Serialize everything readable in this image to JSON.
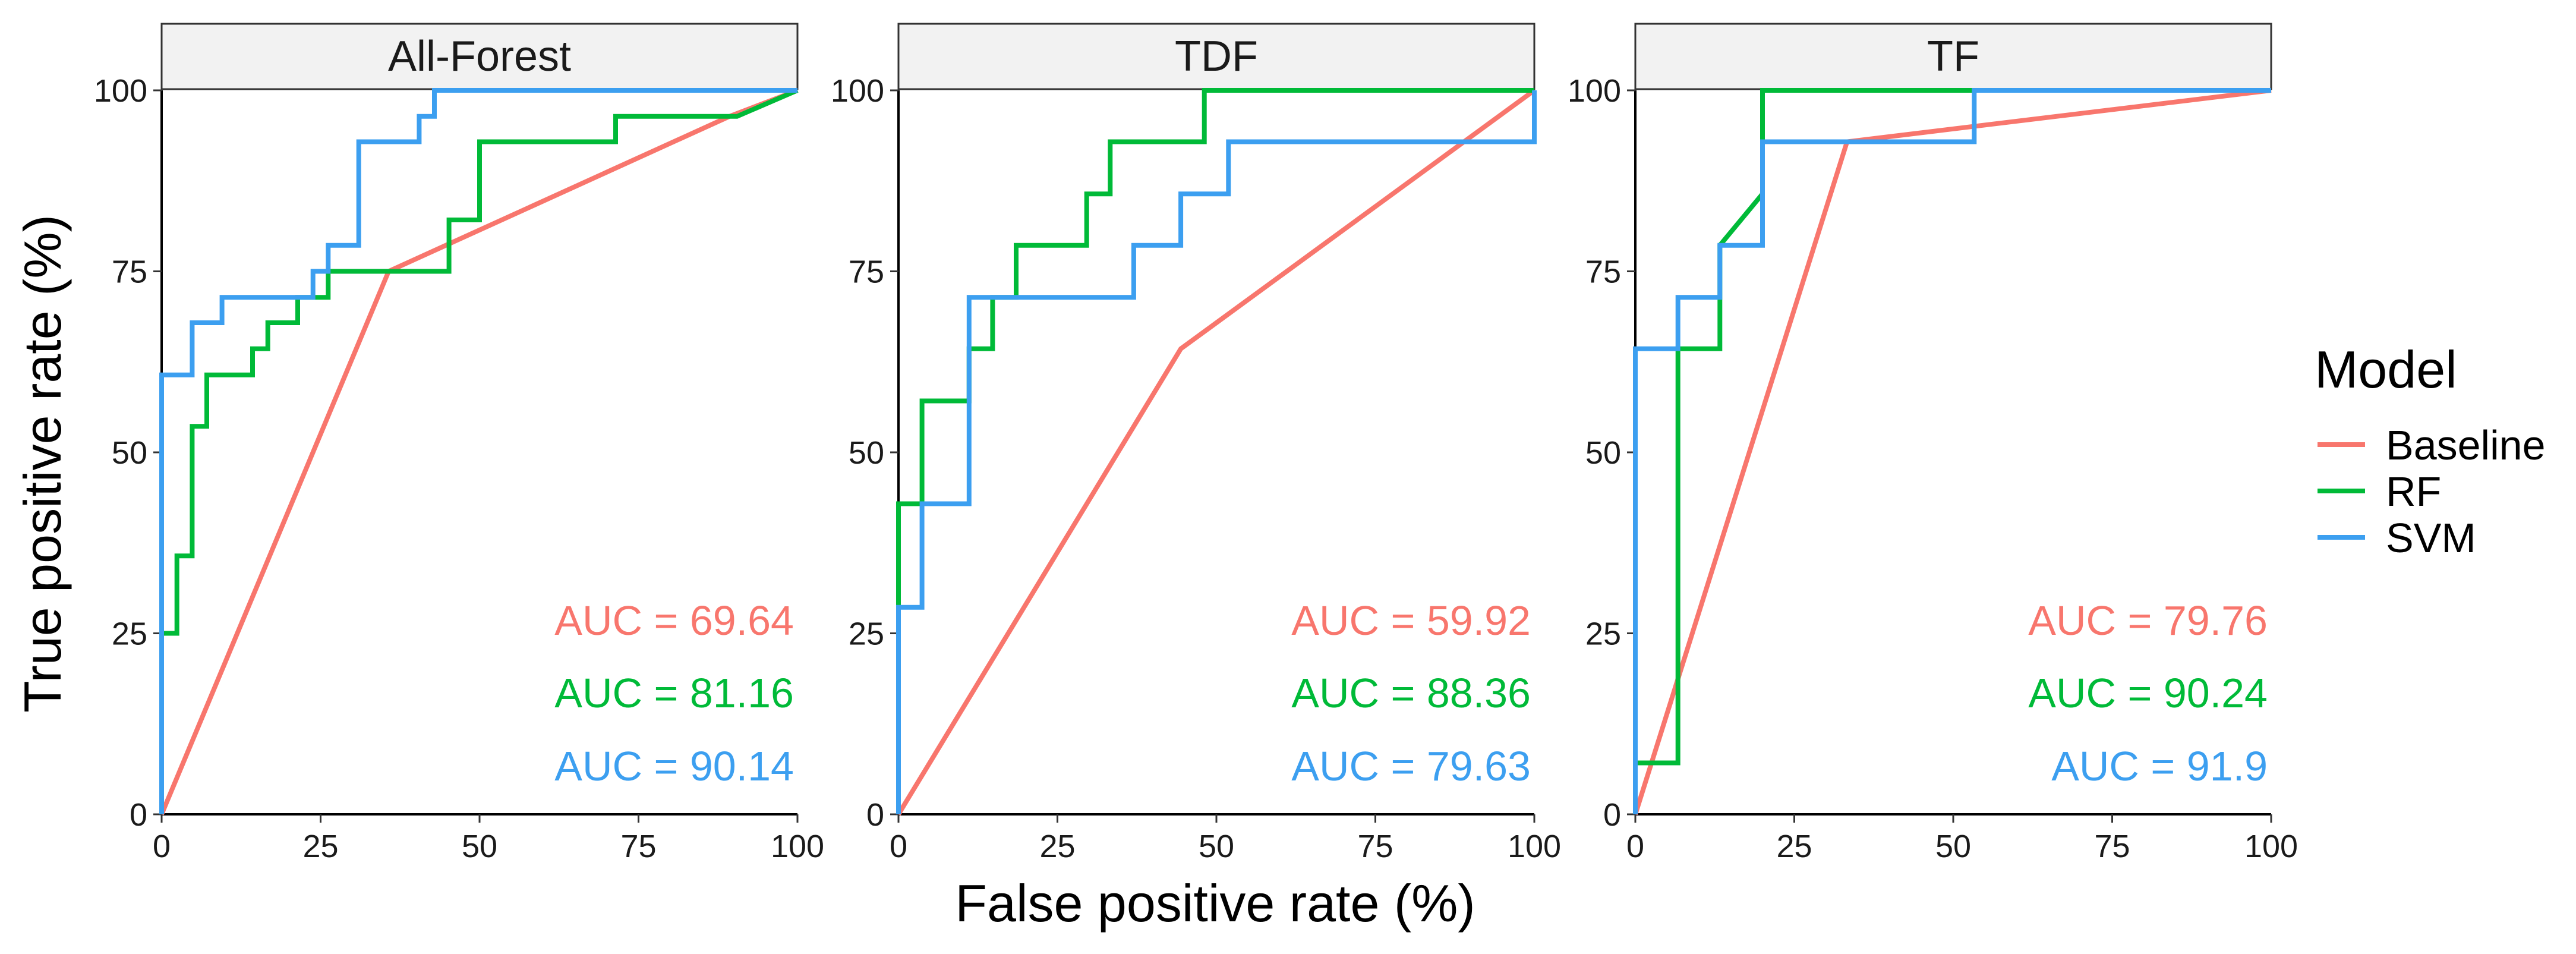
{
  "chart_data": {
    "type": "line",
    "xlabel": "False positive rate (%)",
    "ylabel": "True positive rate (%)",
    "xlim": [
      0,
      100
    ],
    "ylim": [
      0,
      100
    ],
    "xticks": [
      "0",
      "25",
      "50",
      "75",
      "100"
    ],
    "yticks": [
      "0",
      "25",
      "50",
      "75",
      "100"
    ],
    "legend": {
      "title": "Model",
      "position": "right",
      "entries": [
        {
          "name": "Baseline",
          "color": "#F8766D"
        },
        {
          "name": "RF",
          "color": "#00BA38"
        },
        {
          "name": "SVM",
          "color": "#3C9FF0"
        }
      ]
    },
    "panels": [
      {
        "title": "All-Forest",
        "auc": [
          {
            "model": "Baseline",
            "label": "AUC = 69.64"
          },
          {
            "model": "RF",
            "label": "AUC = 81.16"
          },
          {
            "model": "SVM",
            "label": "AUC = 90.14"
          }
        ],
        "series": [
          {
            "name": "Baseline",
            "x": [
              0,
              35.7,
              89.3,
              100
            ],
            "y": [
              0,
              75,
              96.4,
              100
            ]
          },
          {
            "name": "RF",
            "x": [
              0,
              0,
              2.4,
              2.4,
              4.8,
              4.8,
              7.1,
              7.1,
              14.3,
              14.3,
              16.7,
              16.7,
              21.4,
              21.4,
              26.2,
              26.2,
              45.2,
              45.2,
              50,
              50,
              71.4,
              71.4,
              90.5,
              100
            ],
            "y": [
              0,
              25,
              25,
              35.7,
              35.7,
              53.6,
              53.6,
              60.7,
              60.7,
              64.3,
              64.3,
              67.9,
              67.9,
              71.4,
              71.4,
              75,
              75,
              82.1,
              82.1,
              92.9,
              92.9,
              96.4,
              96.4,
              100
            ]
          },
          {
            "name": "SVM",
            "x": [
              0,
              0,
              4.8,
              4.8,
              9.5,
              9.5,
              23.8,
              23.8,
              26.2,
              26.2,
              31,
              31,
              40.5,
              40.5,
              42.9,
              42.9,
              100
            ],
            "y": [
              0,
              60.7,
              60.7,
              67.9,
              67.9,
              71.4,
              71.4,
              75,
              75,
              78.6,
              78.6,
              92.9,
              92.9,
              96.4,
              96.4,
              100,
              100
            ]
          }
        ]
      },
      {
        "title": "TDF",
        "auc": [
          {
            "model": "Baseline",
            "label": "AUC = 59.92"
          },
          {
            "model": "RF",
            "label": "AUC = 88.36"
          },
          {
            "model": "SVM",
            "label": "AUC = 79.63"
          }
        ],
        "series": [
          {
            "name": "Baseline",
            "x": [
              0,
              44.4,
              100
            ],
            "y": [
              0,
              64.3,
              100
            ]
          },
          {
            "name": "RF",
            "x": [
              0,
              0,
              3.7,
              3.7,
              11.1,
              11.1,
              14.8,
              14.8,
              18.5,
              18.5,
              29.6,
              29.6,
              33.3,
              33.3,
              48.1,
              48.1,
              100
            ],
            "y": [
              0,
              42.9,
              42.9,
              57.1,
              57.1,
              64.3,
              64.3,
              71.4,
              71.4,
              78.6,
              78.6,
              85.7,
              85.7,
              92.9,
              92.9,
              100,
              100
            ]
          },
          {
            "name": "SVM",
            "x": [
              0,
              0,
              3.7,
              3.7,
              11.1,
              11.1,
              37,
              37,
              44.4,
              44.4,
              51.9,
              51.9,
              100,
              100
            ],
            "y": [
              0,
              28.6,
              28.6,
              42.9,
              42.9,
              71.4,
              71.4,
              78.6,
              78.6,
              85.7,
              85.7,
              92.9,
              92.9,
              100
            ]
          }
        ]
      },
      {
        "title": "TF",
        "auc": [
          {
            "model": "Baseline",
            "label": "AUC = 79.76"
          },
          {
            "model": "RF",
            "label": "AUC = 90.24"
          },
          {
            "model": "SVM",
            "label": "AUC = 91.9"
          }
        ],
        "series": [
          {
            "name": "Baseline",
            "x": [
              0,
              33.3,
              100
            ],
            "y": [
              0,
              92.9,
              100
            ]
          },
          {
            "name": "RF",
            "x": [
              0,
              0,
              6.7,
              6.7,
              13.3,
              13.3,
              20,
              20,
              100
            ],
            "y": [
              0,
              7.1,
              7.1,
              64.3,
              64.3,
              78.6,
              85.7,
              100,
              100
            ]
          },
          {
            "name": "SVM",
            "x": [
              0,
              0,
              6.7,
              6.7,
              13.3,
              13.3,
              20,
              20,
              53.3,
              53.3,
              100
            ],
            "y": [
              0,
              64.3,
              64.3,
              71.4,
              71.4,
              78.6,
              78.6,
              92.9,
              92.9,
              100,
              100
            ]
          }
        ]
      }
    ]
  }
}
